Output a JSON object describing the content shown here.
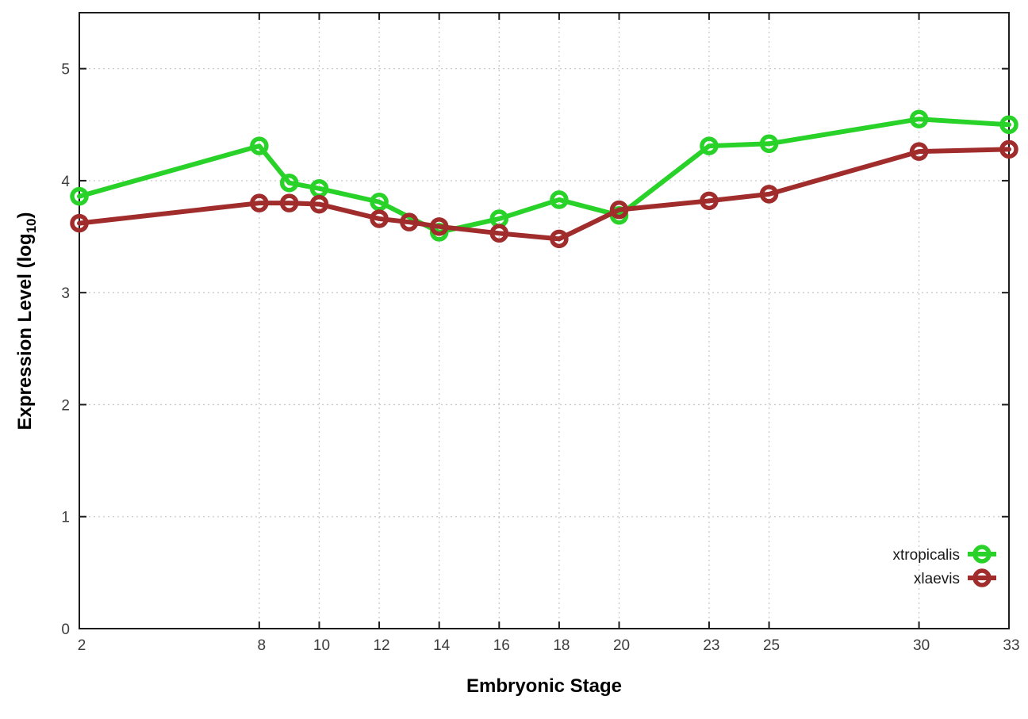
{
  "chart_data": {
    "type": "line",
    "title": "",
    "xlabel": "Embryonic Stage",
    "ylabel": "Expression Level (log10)",
    "ylabel_parts": {
      "pre": "Expression Level (log",
      "sub": "10",
      "post": ")"
    },
    "xlim": [
      2,
      33
    ],
    "ylim": [
      0,
      5.5
    ],
    "x_ticks": [
      2,
      8,
      10,
      12,
      14,
      16,
      18,
      20,
      23,
      25,
      30,
      33
    ],
    "y_ticks": [
      0,
      1,
      2,
      3,
      4,
      5
    ],
    "grid": true,
    "legend_position": "inside-right-bottom",
    "marker": "open-circle",
    "series": [
      {
        "name": "xtropicalis",
        "color": "#28d228",
        "points": [
          [
            2,
            3.86
          ],
          [
            8,
            4.31
          ],
          [
            9,
            3.98
          ],
          [
            10,
            3.93
          ],
          [
            12,
            3.81
          ],
          [
            14,
            3.54
          ],
          [
            16,
            3.66
          ],
          [
            18,
            3.83
          ],
          [
            20,
            3.69
          ],
          [
            23,
            4.31
          ],
          [
            25,
            4.33
          ],
          [
            30,
            4.55
          ],
          [
            33,
            4.5
          ]
        ]
      },
      {
        "name": "xlaevis",
        "color": "#a02c2c",
        "points": [
          [
            2,
            3.62
          ],
          [
            8,
            3.8
          ],
          [
            9,
            3.8
          ],
          [
            10,
            3.79
          ],
          [
            12,
            3.66
          ],
          [
            13,
            3.63
          ],
          [
            14,
            3.59
          ],
          [
            16,
            3.53
          ],
          [
            18,
            3.48
          ],
          [
            20,
            3.74
          ],
          [
            23,
            3.82
          ],
          [
            25,
            3.88
          ],
          [
            30,
            4.26
          ],
          [
            33,
            4.28
          ]
        ]
      }
    ]
  },
  "colors": {
    "background": "#ffffff",
    "grid": "#c9c9c9",
    "border": "#1c1c1c",
    "tick_label": "#3c3c3c",
    "legend_text": "#1a1a1a"
  }
}
